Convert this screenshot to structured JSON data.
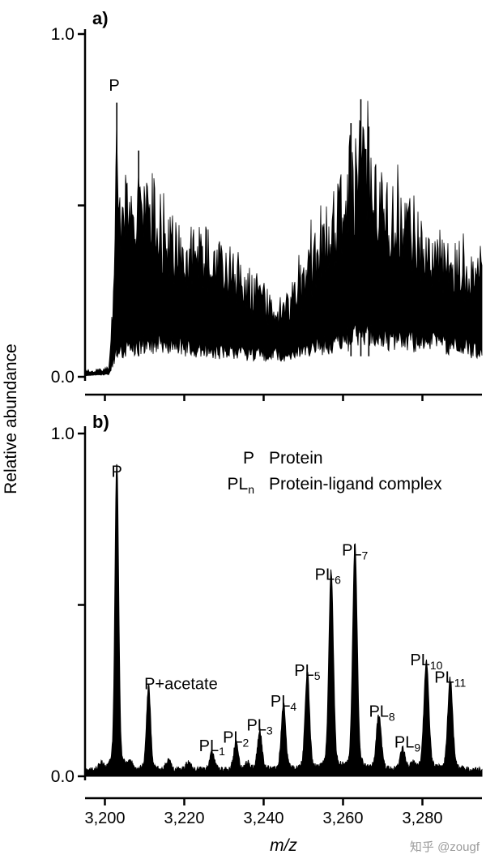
{
  "figure": {
    "ylabel": "Relative abundance",
    "xlabel": "m/z",
    "watermark": "知乎 @zougf",
    "ink_color": "#000000",
    "watermark_color": "#9b9b9b"
  },
  "chart_data": [
    {
      "type": "line",
      "panel_label": "a)",
      "xlabel": "m/z",
      "ylabel": "Relative abundance",
      "xlim": [
        3195,
        3295
      ],
      "ylim": [
        0,
        1.0
      ],
      "grid": false,
      "xticks": [
        3200,
        3220,
        3240,
        3260,
        3280
      ],
      "yticks": [
        {
          "value": 1.0,
          "label": "1.0"
        },
        {
          "value": 0.5,
          "label": ""
        },
        {
          "value": 0.0,
          "label": "0.0"
        }
      ],
      "labeled_peak": {
        "label": "P",
        "mz": 3203,
        "height": 0.8
      },
      "spikes": [
        [
          3203,
          0.8
        ],
        [
          3208.5,
          0.66
        ],
        [
          3262,
          0.74
        ],
        [
          3264.5,
          0.81
        ],
        [
          3266.5,
          0.73
        ]
      ],
      "noise_envelope_high": [
        [
          3195,
          0.02
        ],
        [
          3201,
          0.03
        ],
        [
          3202,
          0.25
        ],
        [
          3203,
          0.8
        ],
        [
          3204,
          0.66
        ],
        [
          3206,
          0.58
        ],
        [
          3208,
          0.63
        ],
        [
          3210,
          0.56
        ],
        [
          3212,
          0.6
        ],
        [
          3215,
          0.52
        ],
        [
          3218,
          0.47
        ],
        [
          3221,
          0.44
        ],
        [
          3224,
          0.46
        ],
        [
          3227,
          0.42
        ],
        [
          3230,
          0.4
        ],
        [
          3234,
          0.36
        ],
        [
          3238,
          0.31
        ],
        [
          3242,
          0.26
        ],
        [
          3245,
          0.24
        ],
        [
          3248,
          0.29
        ],
        [
          3251,
          0.38
        ],
        [
          3254,
          0.46
        ],
        [
          3257,
          0.55
        ],
        [
          3260,
          0.64
        ],
        [
          3262,
          0.72
        ],
        [
          3264,
          0.76
        ],
        [
          3266,
          0.72
        ],
        [
          3268,
          0.66
        ],
        [
          3271,
          0.6
        ],
        [
          3274,
          0.56
        ],
        [
          3277,
          0.52
        ],
        [
          3280,
          0.48
        ],
        [
          3283,
          0.45
        ],
        [
          3286,
          0.42
        ],
        [
          3289,
          0.4
        ],
        [
          3292,
          0.37
        ],
        [
          3295,
          0.34
        ]
      ],
      "noise_envelope_low": [
        [
          3195,
          0.005
        ],
        [
          3201,
          0.01
        ],
        [
          3203,
          0.1
        ],
        [
          3207,
          0.12
        ],
        [
          3212,
          0.13
        ],
        [
          3218,
          0.12
        ],
        [
          3224,
          0.11
        ],
        [
          3230,
          0.1
        ],
        [
          3236,
          0.09
        ],
        [
          3242,
          0.085
        ],
        [
          3247,
          0.09
        ],
        [
          3252,
          0.11
        ],
        [
          3257,
          0.13
        ],
        [
          3262,
          0.15
        ],
        [
          3267,
          0.16
        ],
        [
          3272,
          0.15
        ],
        [
          3278,
          0.14
        ],
        [
          3284,
          0.13
        ],
        [
          3290,
          0.115
        ],
        [
          3295,
          0.1
        ]
      ]
    },
    {
      "type": "line",
      "panel_label": "b)",
      "xlabel": "m/z",
      "ylabel": "Relative abundance",
      "xlim": [
        3195,
        3295
      ],
      "ylim": [
        0,
        1.0
      ],
      "grid": false,
      "baseline": 0.018,
      "xticks": [
        {
          "value": 3200,
          "label": "3,200"
        },
        {
          "value": 3220,
          "label": "3,220"
        },
        {
          "value": 3240,
          "label": "3,240"
        },
        {
          "value": 3260,
          "label": "3,260"
        },
        {
          "value": 3280,
          "label": "3,280"
        }
      ],
      "yticks": [
        {
          "value": 1.0,
          "label": "1.0"
        },
        {
          "value": 0.5,
          "label": ""
        },
        {
          "value": 0.0,
          "label": "0.0"
        }
      ],
      "legend": [
        {
          "symbol": "P",
          "symbol_sub": "",
          "text": "Protein"
        },
        {
          "symbol": "PL",
          "symbol_sub": "n",
          "text": "Protein-ligand complex"
        }
      ],
      "peaks": [
        {
          "label_main": "P",
          "label_sub": "",
          "mz": 3203,
          "height": 0.85,
          "width": 0.45,
          "label_dx": 0
        },
        {
          "label_main": "P+acetate",
          "label_sub": "",
          "mz": 3211,
          "height": 0.23,
          "width": 0.5,
          "label_dx": 40
        },
        {
          "label_main": "PL",
          "label_sub": "1",
          "mz": 3227,
          "height": 0.05,
          "width": 0.55,
          "label_dx": 0
        },
        {
          "label_main": "PL",
          "label_sub": "2",
          "mz": 3233,
          "height": 0.075,
          "width": 0.55,
          "label_dx": 0
        },
        {
          "label_main": "PL",
          "label_sub": "3",
          "mz": 3239,
          "height": 0.11,
          "width": 0.55,
          "label_dx": 0
        },
        {
          "label_main": "PL",
          "label_sub": "4",
          "mz": 3245,
          "height": 0.18,
          "width": 0.55,
          "label_dx": 0
        },
        {
          "label_main": "PL",
          "label_sub": "5",
          "mz": 3251,
          "height": 0.27,
          "width": 0.55,
          "label_dx": 0
        },
        {
          "label_main": "PL",
          "label_sub": "6",
          "mz": 3257,
          "height": 0.55,
          "width": 0.55,
          "label_dx": -4
        },
        {
          "label_main": "PL",
          "label_sub": "7",
          "mz": 3263,
          "height": 0.62,
          "width": 0.55,
          "label_dx": 0
        },
        {
          "label_main": "PL",
          "label_sub": "8",
          "mz": 3269,
          "height": 0.15,
          "width": 0.6,
          "label_dx": 4
        },
        {
          "label_main": "PL",
          "label_sub": "9",
          "mz": 3275,
          "height": 0.06,
          "width": 0.6,
          "label_dx": 6
        },
        {
          "label_main": "PL",
          "label_sub": "10",
          "mz": 3281,
          "height": 0.3,
          "width": 0.6,
          "label_dx": 0
        },
        {
          "label_main": "PL",
          "label_sub": "11",
          "mz": 3287,
          "height": 0.25,
          "width": 0.6,
          "label_dx": 0
        }
      ],
      "minor_peaks": [
        [
          3199,
          0.018
        ],
        [
          3206.5,
          0.025
        ],
        [
          3216,
          0.028
        ],
        [
          3221,
          0.022
        ],
        [
          3236,
          0.02
        ],
        [
          3277.5,
          0.02
        ]
      ]
    }
  ]
}
